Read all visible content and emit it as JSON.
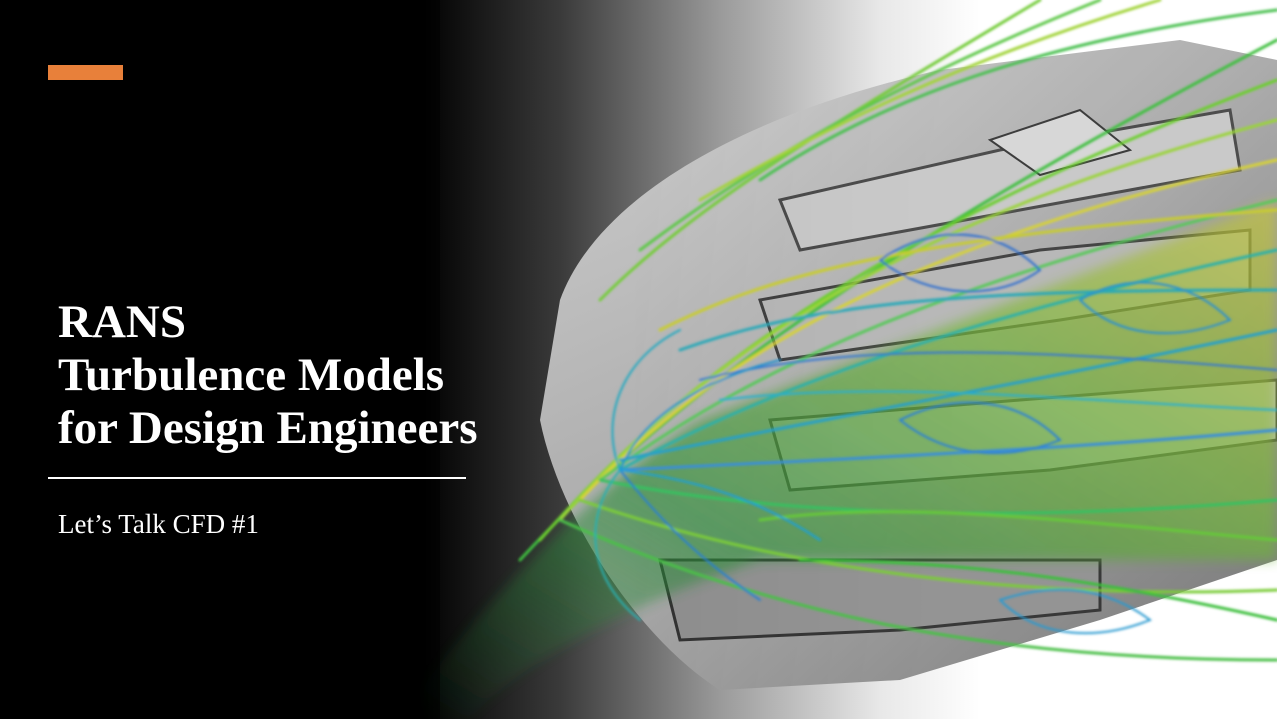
{
  "slide": {
    "title_lines": [
      "RANS",
      "Turbulence Models",
      "for Design Engineers"
    ],
    "subtitle": "Let’s Talk CFD #1",
    "accent_color": "#E8803A"
  },
  "image": {
    "icon": "cfd-streamline-visualization-image"
  }
}
